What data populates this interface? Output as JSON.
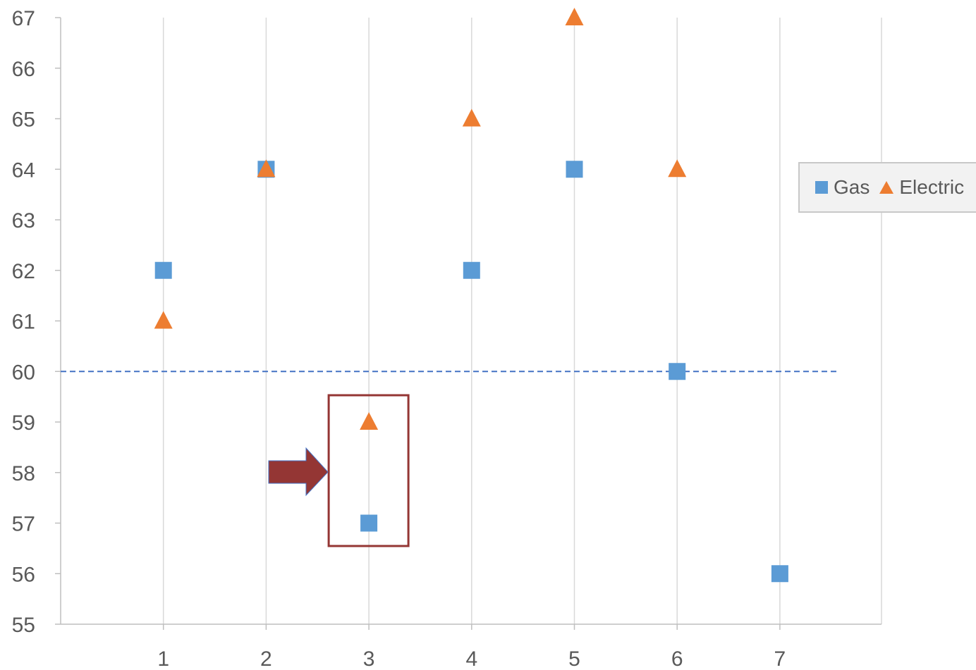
{
  "chart_data": {
    "type": "scatter",
    "title": "",
    "xlabel": "",
    "ylabel": "",
    "xlim": [
      0,
      8
    ],
    "ylim": [
      55,
      67
    ],
    "x_ticks": [
      1,
      2,
      3,
      4,
      5,
      6,
      7
    ],
    "y_ticks": [
      55,
      56,
      57,
      58,
      59,
      60,
      61,
      62,
      63,
      64,
      65,
      66,
      67
    ],
    "grid": "vertical",
    "legend_position": "right",
    "series": [
      {
        "name": "Gas",
        "marker": "square",
        "color": "#5b9bd5",
        "points": [
          [
            1,
            62
          ],
          [
            2,
            64
          ],
          [
            3,
            57
          ],
          [
            4,
            62
          ],
          [
            5,
            64
          ],
          [
            6,
            60
          ],
          [
            7,
            56
          ]
        ]
      },
      {
        "name": "Electric",
        "marker": "triangle",
        "color": "#ed7d31",
        "points": [
          [
            1,
            61
          ],
          [
            2,
            64
          ],
          [
            3,
            59
          ],
          [
            4,
            65
          ],
          [
            5,
            67
          ],
          [
            6,
            64
          ]
        ]
      }
    ],
    "reference_line": {
      "y": 60,
      "style": "dashed",
      "color": "#4472c4"
    },
    "annotation": {
      "type": "highlight-box-with-arrow",
      "x": 3,
      "y_range": [
        57,
        59
      ],
      "color": "#943634"
    }
  }
}
